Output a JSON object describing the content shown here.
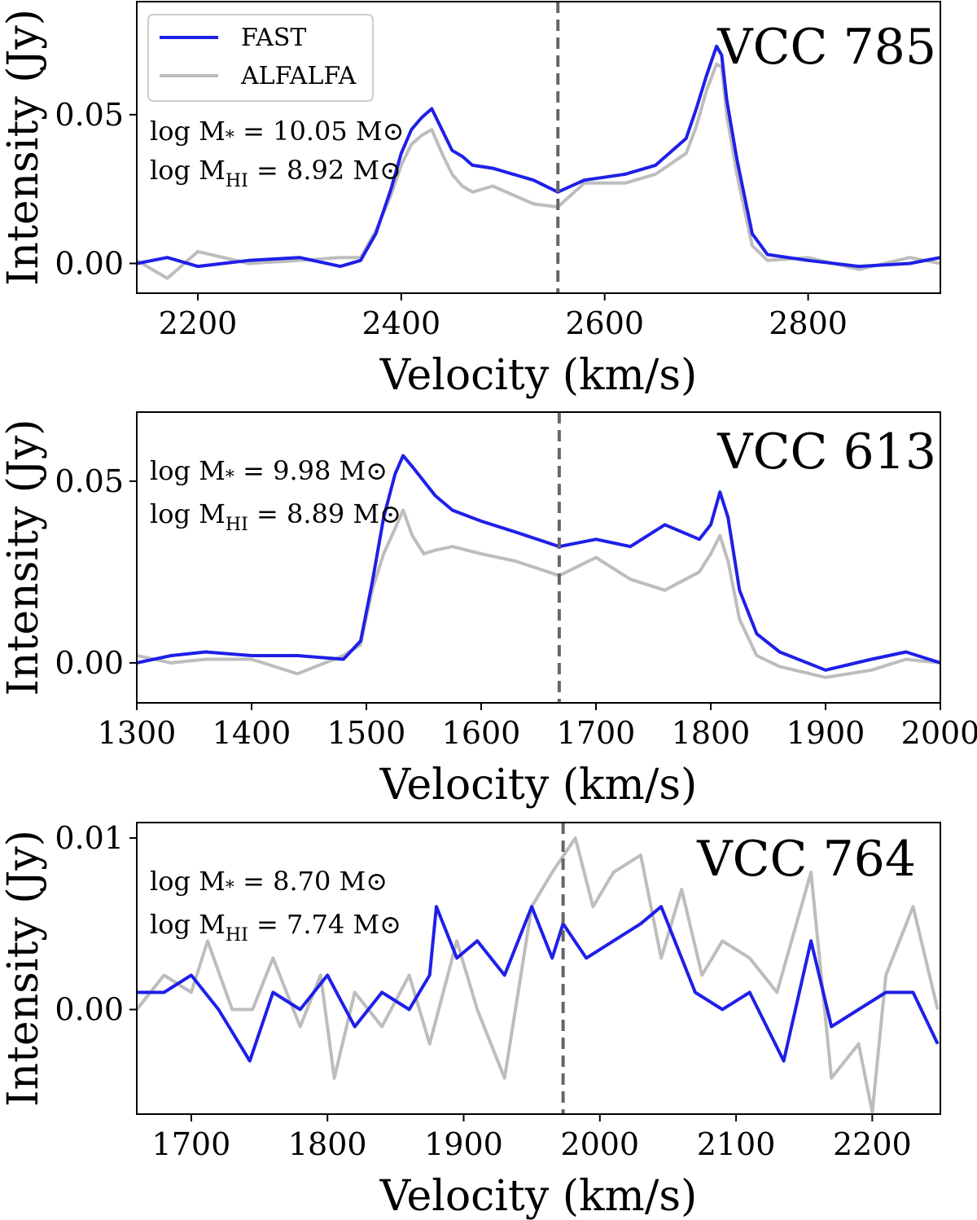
{
  "colors": {
    "fast": "#1f1fe8",
    "alfalfa": "#bdbdbd",
    "systemic": "#666666"
  },
  "legend": [
    "FAST",
    "ALFALFA"
  ],
  "chart_data": [
    {
      "type": "line",
      "galaxy": "VCC 785",
      "xlabel": "Velocity (km/s)",
      "ylabel": "Intensity (Jy)",
      "xlim": [
        2140,
        2930
      ],
      "ylim": [
        -0.01,
        0.088
      ],
      "xticks": [
        2200,
        2400,
        2600,
        2800
      ],
      "xtick_labels": [
        "2200",
        "2400",
        "2600",
        "2800"
      ],
      "yticks": [
        0.0,
        0.05
      ],
      "ytick_labels": [
        "0.00",
        "0.05"
      ],
      "systemic_velocity": 2554,
      "annotation_mstar": "log M* = 10.05 M⊙",
      "annotation_mhi": "log MHI = 8.92 M⊙",
      "series": [
        {
          "name": "FAST",
          "x": [
            2140,
            2170,
            2200,
            2250,
            2300,
            2340,
            2360,
            2375,
            2390,
            2400,
            2410,
            2420,
            2430,
            2440,
            2450,
            2460,
            2470,
            2490,
            2510,
            2530,
            2554,
            2580,
            2620,
            2650,
            2680,
            2690,
            2700,
            2710,
            2715,
            2720,
            2730,
            2745,
            2760,
            2800,
            2850,
            2900,
            2930
          ],
          "y": [
            0.0,
            0.002,
            -0.001,
            0.001,
            0.002,
            -0.001,
            0.001,
            0.01,
            0.025,
            0.037,
            0.045,
            0.049,
            0.052,
            0.045,
            0.038,
            0.036,
            0.033,
            0.032,
            0.03,
            0.028,
            0.024,
            0.028,
            0.03,
            0.033,
            0.042,
            0.052,
            0.063,
            0.073,
            0.07,
            0.055,
            0.035,
            0.01,
            0.003,
            0.001,
            -0.001,
            0.0,
            0.002
          ]
        },
        {
          "name": "ALFALFA",
          "x": [
            2140,
            2170,
            2200,
            2250,
            2300,
            2340,
            2360,
            2375,
            2390,
            2400,
            2410,
            2420,
            2430,
            2440,
            2450,
            2460,
            2470,
            2490,
            2510,
            2530,
            2554,
            2580,
            2620,
            2650,
            2680,
            2690,
            2700,
            2710,
            2715,
            2720,
            2730,
            2745,
            2760,
            2800,
            2850,
            2900,
            2930
          ],
          "y": [
            0.001,
            -0.005,
            0.004,
            0.0,
            0.001,
            0.002,
            0.002,
            0.011,
            0.023,
            0.033,
            0.04,
            0.043,
            0.045,
            0.037,
            0.03,
            0.026,
            0.024,
            0.026,
            0.023,
            0.02,
            0.019,
            0.027,
            0.027,
            0.03,
            0.037,
            0.046,
            0.058,
            0.067,
            0.066,
            0.05,
            0.03,
            0.006,
            0.001,
            0.002,
            -0.002,
            0.002,
            0.0
          ]
        }
      ]
    },
    {
      "type": "line",
      "galaxy": "VCC 613",
      "xlabel": "Velocity (km/s)",
      "ylabel": "Intensity (Jy)",
      "xlim": [
        1300,
        2000
      ],
      "ylim": [
        -0.011,
        0.069
      ],
      "xticks": [
        1300,
        1400,
        1500,
        1600,
        1700,
        1800,
        1900,
        2000
      ],
      "xtick_labels": [
        "1300",
        "1400",
        "1500",
        "1600",
        "1700",
        "1800",
        "1900",
        "2000"
      ],
      "yticks": [
        0.0,
        0.05
      ],
      "ytick_labels": [
        "0.00",
        "0.05"
      ],
      "systemic_velocity": 1668,
      "annotation_mstar": "log M* = 9.98 M⊙",
      "annotation_mhi": "log MHI = 8.89 M⊙",
      "series": [
        {
          "name": "FAST",
          "x": [
            1300,
            1330,
            1360,
            1400,
            1440,
            1480,
            1495,
            1505,
            1515,
            1525,
            1532,
            1540,
            1550,
            1560,
            1575,
            1600,
            1630,
            1668,
            1700,
            1730,
            1760,
            1790,
            1800,
            1808,
            1815,
            1825,
            1840,
            1860,
            1900,
            1940,
            1970,
            2000
          ],
          "y": [
            0.0,
            0.002,
            0.003,
            0.002,
            0.002,
            0.001,
            0.006,
            0.022,
            0.04,
            0.052,
            0.057,
            0.054,
            0.05,
            0.046,
            0.042,
            0.039,
            0.036,
            0.032,
            0.034,
            0.032,
            0.038,
            0.034,
            0.038,
            0.047,
            0.04,
            0.02,
            0.008,
            0.003,
            -0.002,
            0.001,
            0.003,
            0.0
          ]
        },
        {
          "name": "ALFALFA",
          "x": [
            1300,
            1330,
            1360,
            1400,
            1440,
            1480,
            1495,
            1505,
            1515,
            1525,
            1532,
            1540,
            1550,
            1560,
            1575,
            1600,
            1630,
            1668,
            1700,
            1730,
            1760,
            1790,
            1800,
            1808,
            1815,
            1825,
            1840,
            1860,
            1900,
            1940,
            1970,
            2000
          ],
          "y": [
            0.002,
            0.0,
            0.001,
            0.001,
            -0.003,
            0.002,
            0.005,
            0.02,
            0.03,
            0.037,
            0.042,
            0.035,
            0.03,
            0.031,
            0.032,
            0.03,
            0.028,
            0.024,
            0.029,
            0.023,
            0.02,
            0.025,
            0.03,
            0.035,
            0.028,
            0.012,
            0.002,
            -0.001,
            -0.004,
            -0.002,
            0.001,
            0.0
          ]
        }
      ]
    },
    {
      "type": "line",
      "galaxy": "VCC 764",
      "xlabel": "Velocity (km/s)",
      "ylabel": "Intensity (Jy)",
      "xlim": [
        1660,
        2250
      ],
      "ylim": [
        -0.0061,
        0.0109
      ],
      "xticks": [
        1700,
        1800,
        1900,
        2000,
        2100,
        2200
      ],
      "xtick_labels": [
        "1700",
        "1800",
        "1900",
        "2000",
        "2100",
        "2200"
      ],
      "yticks": [
        0.0,
        0.01
      ],
      "ytick_labels": [
        "0.00",
        "0.01"
      ],
      "systemic_velocity": 1973,
      "annotation_mstar": "log M* = 8.70 M⊙",
      "annotation_mhi": "log MHI = 7.74 M⊙",
      "series": [
        {
          "name": "FAST",
          "x": [
            1660,
            1680,
            1700,
            1720,
            1743,
            1760,
            1780,
            1800,
            1820,
            1840,
            1860,
            1875,
            1880,
            1895,
            1910,
            1930,
            1950,
            1965,
            1973,
            1990,
            2010,
            2030,
            2045,
            2060,
            2070,
            2090,
            2110,
            2135,
            2155,
            2170,
            2190,
            2210,
            2230,
            2248
          ],
          "y": [
            0.001,
            0.001,
            0.002,
            0.0,
            -0.003,
            0.001,
            0.0,
            0.002,
            -0.001,
            0.001,
            0.0,
            0.002,
            0.006,
            0.003,
            0.004,
            0.002,
            0.006,
            0.003,
            0.005,
            0.003,
            0.004,
            0.005,
            0.006,
            0.003,
            0.001,
            0.0,
            0.001,
            -0.003,
            0.004,
            -0.001,
            0.0,
            0.001,
            0.001,
            -0.002
          ]
        },
        {
          "name": "ALFALFA",
          "x": [
            1660,
            1680,
            1700,
            1712,
            1730,
            1745,
            1760,
            1780,
            1795,
            1805,
            1820,
            1840,
            1860,
            1875,
            1895,
            1910,
            1930,
            1950,
            1965,
            1982,
            1995,
            2010,
            2030,
            2045,
            2060,
            2075,
            2090,
            2110,
            2130,
            2155,
            2170,
            2190,
            2200,
            2210,
            2230,
            2248
          ],
          "y": [
            0.0,
            0.002,
            0.001,
            0.004,
            0.0,
            0.0,
            0.003,
            -0.001,
            0.002,
            -0.004,
            0.001,
            -0.001,
            0.002,
            -0.002,
            0.004,
            0.0,
            -0.004,
            0.006,
            0.008,
            0.01,
            0.006,
            0.008,
            0.009,
            0.003,
            0.007,
            0.002,
            0.004,
            0.003,
            0.001,
            0.008,
            -0.004,
            -0.002,
            -0.006,
            0.002,
            0.006,
            0.0
          ]
        }
      ]
    }
  ]
}
